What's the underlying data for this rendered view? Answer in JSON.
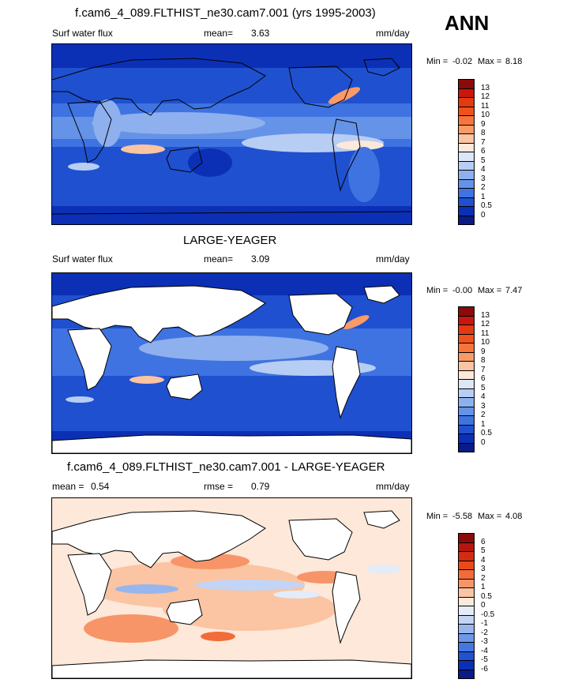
{
  "season": "ANN",
  "panels": [
    {
      "title": "f.cam6_4_089.FLTHIST_ne30.cam7.001 (yrs 1995-2003)",
      "left_label": "Surf water flux",
      "stat1_label": "mean=",
      "stat1_value": "3.63",
      "stat2_label": "",
      "stat2_value": "",
      "units": "mm/day",
      "min_label": "Min =",
      "min_value": "-0.02",
      "max_label": "Max =",
      "max_value": "8.18",
      "land_masked": false,
      "colorbar": {
        "levels": [
          "13",
          "12",
          "11",
          "10",
          "9",
          "8",
          "7",
          "6",
          "5",
          "4",
          "3",
          "2",
          "1",
          "0.5",
          "0"
        ],
        "colors": [
          "#8b0a0a",
          "#c9170e",
          "#e33a12",
          "#f0521b",
          "#f7743a",
          "#f99a67",
          "#fbc4a2",
          "#fde8d9",
          "#dbe6f7",
          "#b7cdf3",
          "#8eb0ee",
          "#6493e8",
          "#3e73e1",
          "#1f50cf",
          "#0b30b6",
          "#0a1a86"
        ]
      }
    },
    {
      "title": "LARGE-YEAGER",
      "left_label": "Surf water flux",
      "stat1_label": "mean=",
      "stat1_value": "3.09",
      "stat2_label": "",
      "stat2_value": "",
      "units": "mm/day",
      "min_label": "Min =",
      "min_value": "-0.00",
      "max_label": "Max =",
      "max_value": "7.47",
      "land_masked": true,
      "colorbar": {
        "levels": [
          "13",
          "12",
          "11",
          "10",
          "9",
          "8",
          "7",
          "6",
          "5",
          "4",
          "3",
          "2",
          "1",
          "0.5",
          "0"
        ],
        "colors": [
          "#8b0a0a",
          "#c9170e",
          "#e33a12",
          "#f0521b",
          "#f7743a",
          "#f99a67",
          "#fbc4a2",
          "#fde8d9",
          "#dbe6f7",
          "#b7cdf3",
          "#8eb0ee",
          "#6493e8",
          "#3e73e1",
          "#1f50cf",
          "#0b30b6",
          "#0a1a86"
        ]
      }
    },
    {
      "title": "f.cam6_4_089.FLTHIST_ne30.cam7.001 - LARGE-YEAGER",
      "left_label": "mean =",
      "stat1_label": "0.54",
      "stat1_value": "",
      "stat2_label": "rmse =",
      "stat2_value": "0.79",
      "units": "mm/day",
      "min_label": "Min =",
      "min_value": "-5.58",
      "max_label": "Max =",
      "max_value": "4.08",
      "land_masked": true,
      "colorbar": {
        "levels": [
          "6",
          "5",
          "4",
          "3",
          "2",
          "1",
          "0.5",
          "0",
          "-0.5",
          "-1",
          "-2",
          "-3",
          "-4",
          "-5",
          "-6"
        ],
        "colors": [
          "#8b0a0a",
          "#b4160f",
          "#d22c12",
          "#e94a1a",
          "#f26b3a",
          "#f79568",
          "#fbc4a2",
          "#fde8d9",
          "#e3ecf8",
          "#c3d4f4",
          "#97b6ee",
          "#6d97e8",
          "#4577e1",
          "#2252cf",
          "#0b30b6",
          "#0a1a86"
        ]
      }
    }
  ]
}
